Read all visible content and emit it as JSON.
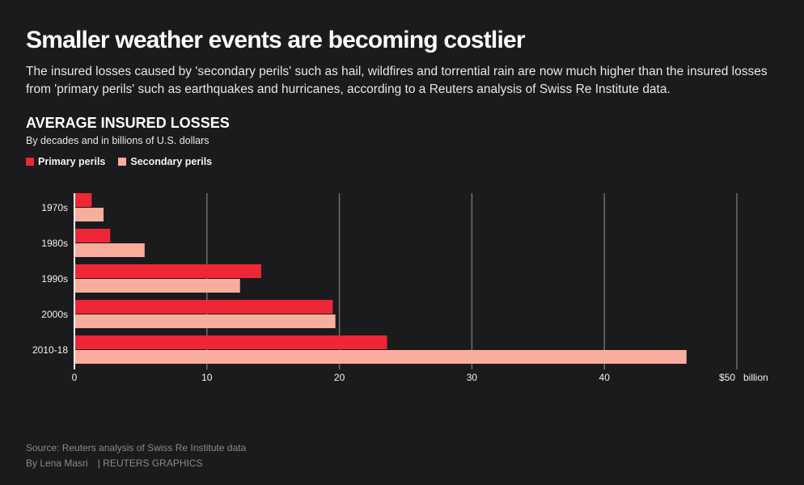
{
  "headline": "Smaller weather events are becoming costlier",
  "deck": "The insured losses caused by 'secondary perils' such as hail, wildfires and torrential rain are now much higher than the insured losses from 'primary perils' such as earthquakes and hurricanes, according to a Reuters analysis of Swiss Re Institute data.",
  "footer": {
    "source": "Source: Reuters analysis of Swiss Re Institute data",
    "author": "By Lena Masri",
    "credit": "| REUTERS GRAPHICS"
  },
  "chart_data": {
    "type": "bar",
    "orientation": "horizontal",
    "title": "AVERAGE INSURED LOSSES",
    "subtitle": "By decades and in billions of U.S. dollars",
    "categories": [
      "1970s",
      "1980s",
      "1990s",
      "2000s",
      "2010-18"
    ],
    "series": [
      {
        "name": "Primary perils",
        "color": "#ee2737",
        "values": [
          1.3,
          2.7,
          14.1,
          19.5,
          23.6
        ]
      },
      {
        "name": "Secondary perils",
        "color": "#f8ad9d",
        "values": [
          2.2,
          5.3,
          12.5,
          19.7,
          46.2
        ]
      }
    ],
    "xlim": [
      0,
      50
    ],
    "xticks": [
      0,
      10,
      20,
      30,
      40,
      50
    ],
    "xtick_labels": [
      "0",
      "10",
      "20",
      "30",
      "40",
      "$50"
    ],
    "x_unit_label": "billion",
    "grid": true,
    "legend_position": "top-left"
  }
}
